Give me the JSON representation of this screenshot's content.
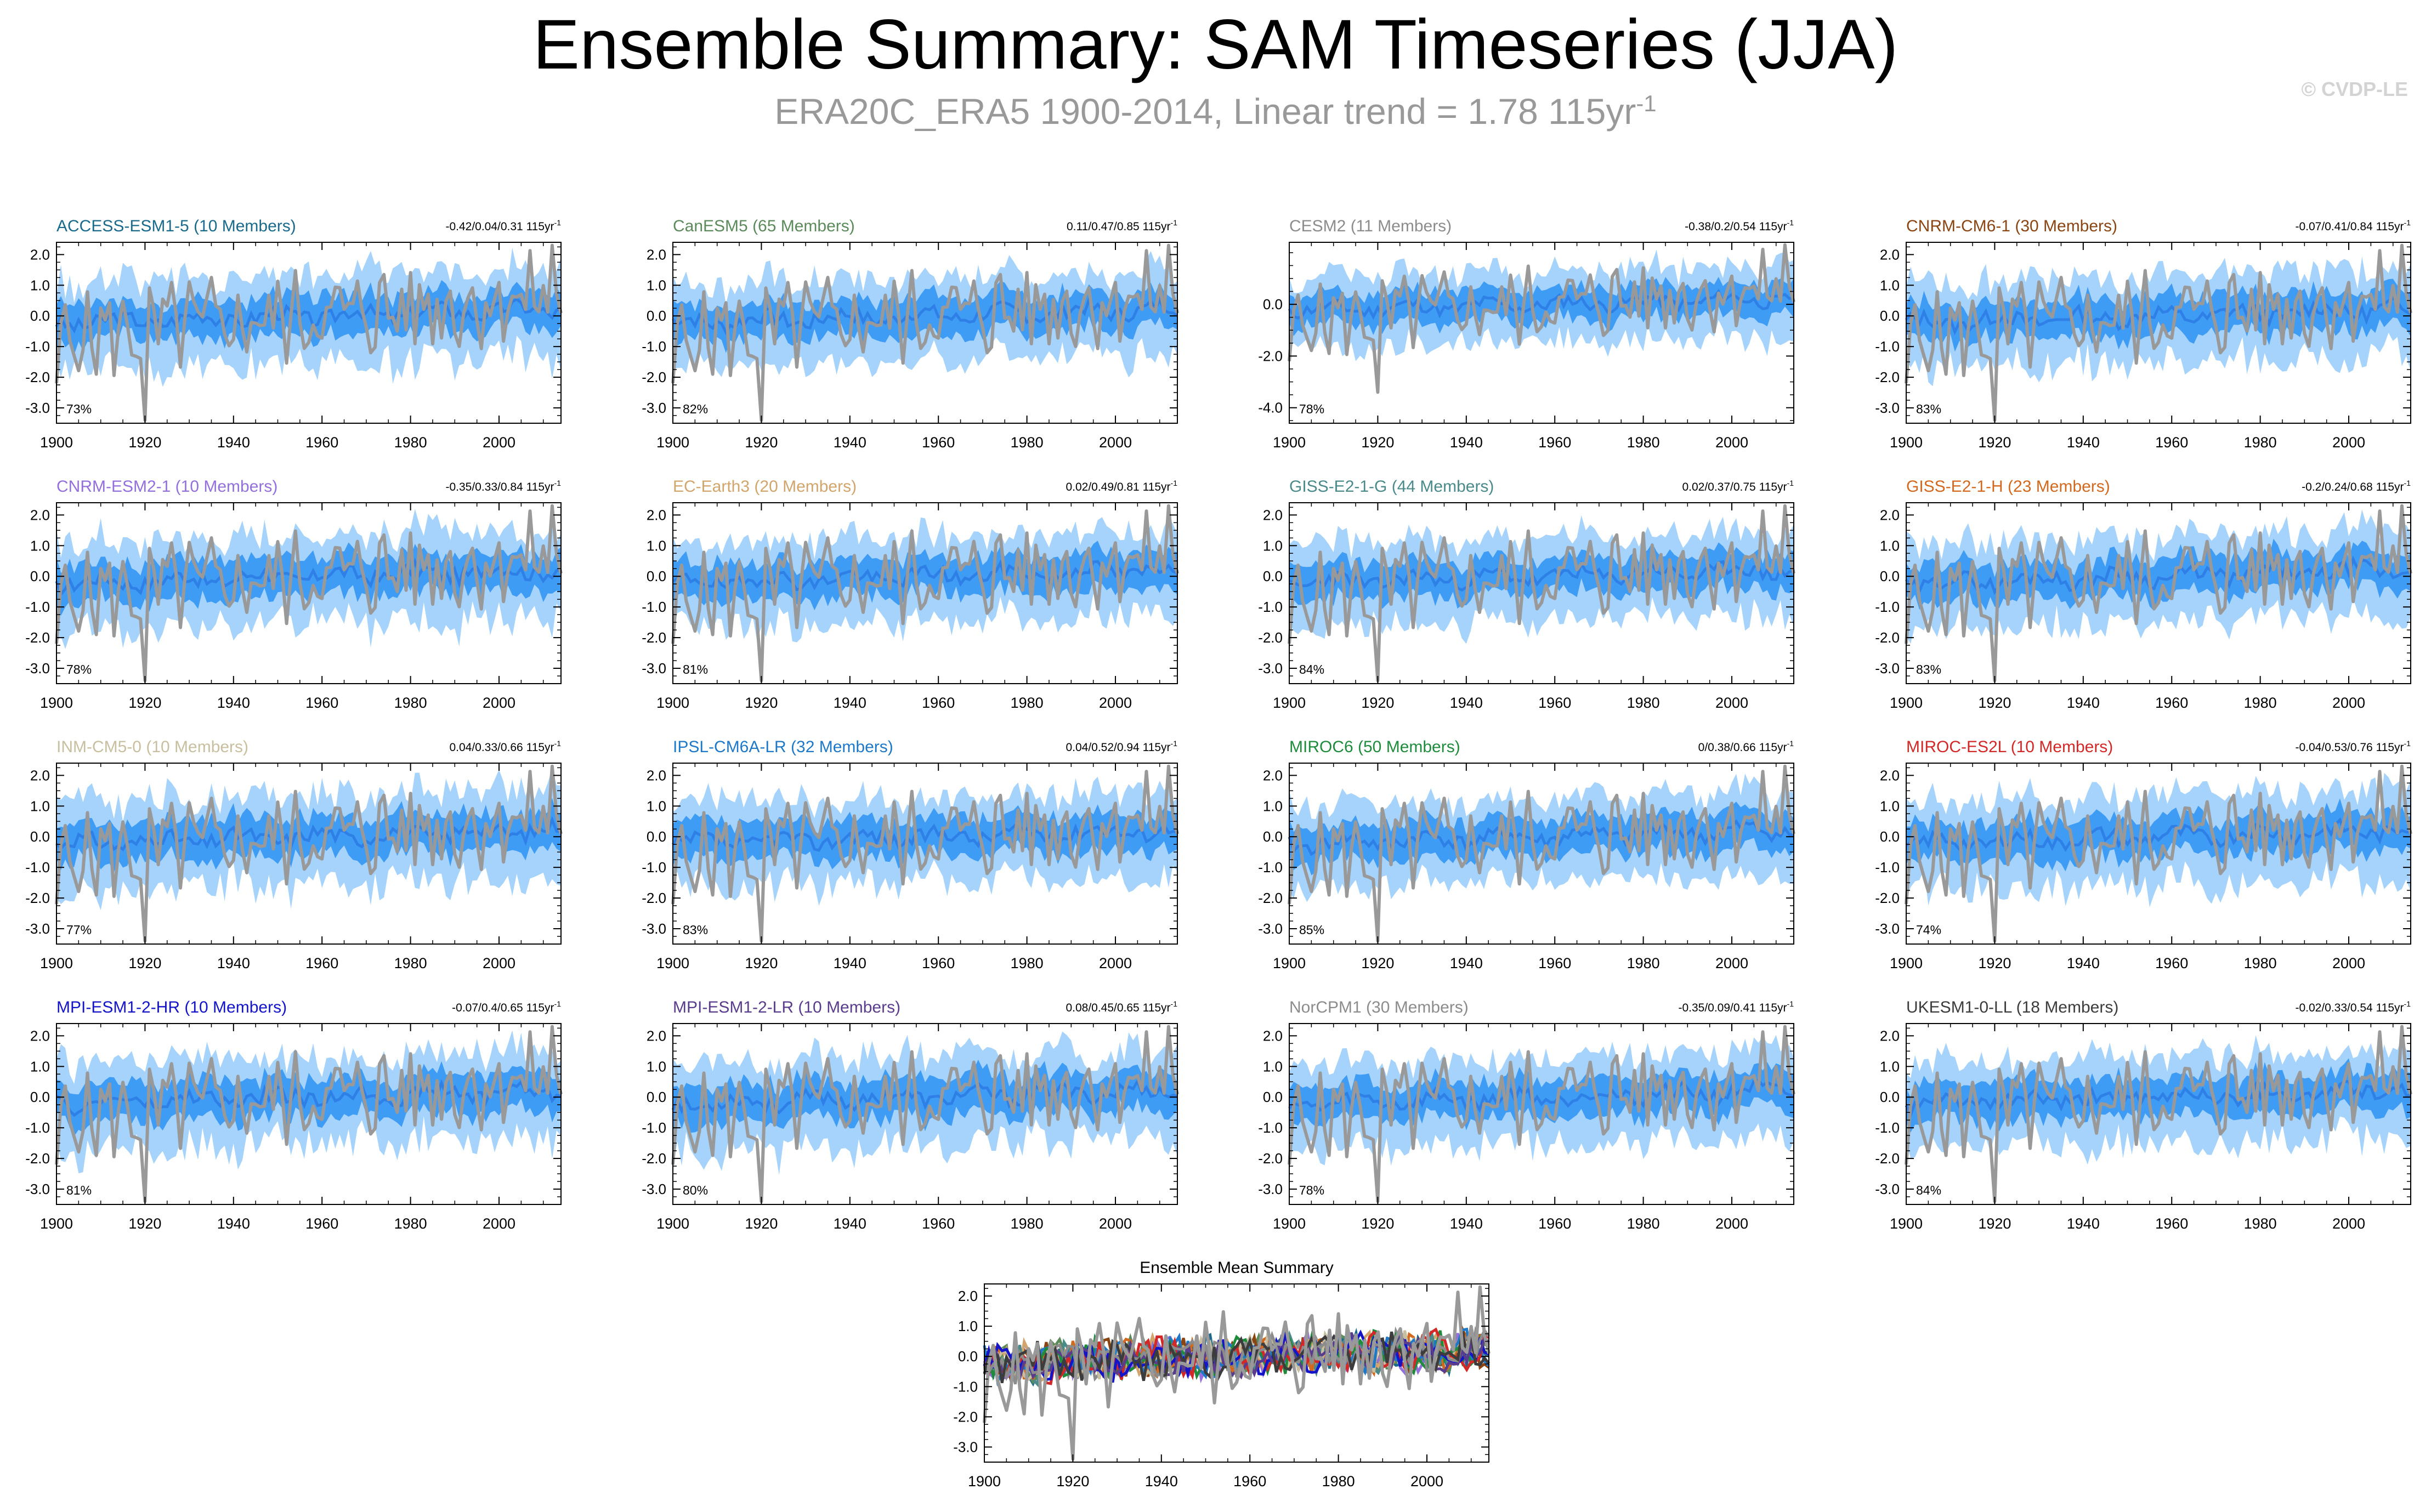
{
  "page": {
    "title": "Ensemble Summary: SAM Timeseries (JJA)",
    "subtitle_main": "ERA20C_ERA5 1900-2014, Linear trend = 1.78 115yr",
    "subtitle_sup": "-1",
    "copyright": "© CVDP-LE"
  },
  "colors": {
    "obs": "#999999",
    "band_outer": "#a6d3fb",
    "band_inner": "#3f9cf5",
    "ens_mean": "#2f80e6",
    "axis": "#000000"
  },
  "chart_data": [
    {
      "type": "area",
      "title": "ACCESS-ESM1-5 (10 Members)",
      "title_color": "#1a6a8c",
      "trend": "-0.42/0.04/0.31 115yr",
      "trend_sup": "-1",
      "pct": "73%",
      "xlim": [
        1900,
        2014
      ],
      "ylim": [
        -3.5,
        2.4
      ],
      "yticks": [
        2,
        1,
        0,
        -1,
        -2,
        -3
      ],
      "ytick_labels": [
        "2.0",
        "1.0",
        "0.0",
        "-1.0",
        "-2.0",
        "-3.0"
      ],
      "xticks": [
        1900,
        1920,
        1940,
        1960,
        1980,
        2000
      ],
      "xtick_labels": [
        "1900",
        "1920",
        "1940",
        "1960",
        "1980",
        "2000"
      ],
      "seed": 3,
      "spread": 1.0
    },
    {
      "type": "area",
      "title": "CanESM5 (65 Members)",
      "title_color": "#5b8a5b",
      "trend": "0.11/0.47/0.85 115yr",
      "trend_sup": "-1",
      "pct": "82%",
      "xlim": [
        1900,
        2014
      ],
      "ylim": [
        -3.5,
        2.4
      ],
      "yticks": [
        2,
        1,
        0,
        -1,
        -2,
        -3
      ],
      "ytick_labels": [
        "2.0",
        "1.0",
        "0.0",
        "-1.0",
        "-2.0",
        "-3.0"
      ],
      "xticks": [
        1900,
        1920,
        1940,
        1960,
        1980,
        2000
      ],
      "xtick_labels": [
        "1900",
        "1920",
        "1940",
        "1960",
        "1980",
        "2000"
      ],
      "seed": 7,
      "spread": 0.8
    },
    {
      "type": "area",
      "title": "CESM2 (11 Members)",
      "title_color": "#8c8c8c",
      "trend": "-0.38/0.2/0.54 115yr",
      "trend_sup": "-1",
      "pct": "78%",
      "xlim": [
        1900,
        2014
      ],
      "ylim": [
        -4.6,
        2.4
      ],
      "yticks": [
        0,
        -2,
        -4
      ],
      "ytick_labels": [
        "0.0",
        "-2.0",
        "-4.0"
      ],
      "xticks": [
        1900,
        1920,
        1940,
        1960,
        1980,
        2000
      ],
      "xtick_labels": [
        "1900",
        "1920",
        "1940",
        "1960",
        "1980",
        "2000"
      ],
      "seed": 11,
      "spread": 0.9
    },
    {
      "type": "area",
      "title": "CNRM-CM6-1 (30 Members)",
      "title_color": "#8b4513",
      "trend": "-0.07/0.41/0.84 115yr",
      "trend_sup": "-1",
      "pct": "83%",
      "xlim": [
        1900,
        2014
      ],
      "ylim": [
        -3.5,
        2.4
      ],
      "yticks": [
        2,
        1,
        0,
        -1,
        -2,
        -3
      ],
      "ytick_labels": [
        "2.0",
        "1.0",
        "0.0",
        "-1.0",
        "-2.0",
        "-3.0"
      ],
      "xticks": [
        1900,
        1920,
        1940,
        1960,
        1980,
        2000
      ],
      "xtick_labels": [
        "1900",
        "1920",
        "1940",
        "1960",
        "1980",
        "2000"
      ],
      "seed": 13,
      "spread": 0.9
    },
    {
      "type": "area",
      "title": "CNRM-ESM2-1 (10 Members)",
      "title_color": "#9370db",
      "trend": "-0.35/0.33/0.84 115yr",
      "trend_sup": "-1",
      "pct": "78%",
      "xlim": [
        1900,
        2014
      ],
      "ylim": [
        -3.5,
        2.4
      ],
      "yticks": [
        2,
        1,
        0,
        -1,
        -2,
        -3
      ],
      "ytick_labels": [
        "2.0",
        "1.0",
        "0.0",
        "-1.0",
        "-2.0",
        "-3.0"
      ],
      "xticks": [
        1900,
        1920,
        1940,
        1960,
        1980,
        2000
      ],
      "xtick_labels": [
        "1900",
        "1920",
        "1940",
        "1960",
        "1980",
        "2000"
      ],
      "seed": 17,
      "spread": 1.0
    },
    {
      "type": "area",
      "title": "EC-Earth3 (20 Members)",
      "title_color": "#d2a56c",
      "trend": "0.02/0.49/0.81 115yr",
      "trend_sup": "-1",
      "pct": "81%",
      "xlim": [
        1900,
        2014
      ],
      "ylim": [
        -3.5,
        2.4
      ],
      "yticks": [
        2,
        1,
        0,
        -1,
        -2,
        -3
      ],
      "ytick_labels": [
        "2.0",
        "1.0",
        "0.0",
        "-1.0",
        "-2.0",
        "-3.0"
      ],
      "xticks": [
        1900,
        1920,
        1940,
        1960,
        1980,
        2000
      ],
      "xtick_labels": [
        "1900",
        "1920",
        "1940",
        "1960",
        "1980",
        "2000"
      ],
      "seed": 19,
      "spread": 0.85
    },
    {
      "type": "area",
      "title": "GISS-E2-1-G (44 Members)",
      "title_color": "#4a8a8a",
      "trend": "0.02/0.37/0.75 115yr",
      "trend_sup": "-1",
      "pct": "84%",
      "xlim": [
        1900,
        2014
      ],
      "ylim": [
        -3.5,
        2.4
      ],
      "yticks": [
        2,
        1,
        0,
        -1,
        -2,
        -3
      ],
      "ytick_labels": [
        "2.0",
        "1.0",
        "0.0",
        "-1.0",
        "-2.0",
        "-3.0"
      ],
      "xticks": [
        1900,
        1920,
        1940,
        1960,
        1980,
        2000
      ],
      "xtick_labels": [
        "1900",
        "1920",
        "1940",
        "1960",
        "1980",
        "2000"
      ],
      "seed": 23,
      "spread": 0.8
    },
    {
      "type": "area",
      "title": "GISS-E2-1-H (23 Members)",
      "title_color": "#d2691e",
      "trend": "-0.2/0.24/0.68 115yr",
      "trend_sup": "-1",
      "pct": "83%",
      "xlim": [
        1900,
        2014
      ],
      "ylim": [
        -3.5,
        2.4
      ],
      "yticks": [
        2,
        1,
        0,
        -1,
        -2,
        -3
      ],
      "ytick_labels": [
        "2.0",
        "1.0",
        "0.0",
        "-1.0",
        "-2.0",
        "-3.0"
      ],
      "xticks": [
        1900,
        1920,
        1940,
        1960,
        1980,
        2000
      ],
      "xtick_labels": [
        "1900",
        "1920",
        "1940",
        "1960",
        "1980",
        "2000"
      ],
      "seed": 29,
      "spread": 0.85
    },
    {
      "type": "area",
      "title": "INM-CM5-0 (10 Members)",
      "title_color": "#c8bfa0",
      "trend": "0.04/0.33/0.66 115yr",
      "trend_sup": "-1",
      "pct": "77%",
      "xlim": [
        1900,
        2014
      ],
      "ylim": [
        -3.5,
        2.4
      ],
      "yticks": [
        2,
        1,
        0,
        -1,
        -2,
        -3
      ],
      "ytick_labels": [
        "2.0",
        "1.0",
        "0.0",
        "-1.0",
        "-2.0",
        "-3.0"
      ],
      "xticks": [
        1900,
        1920,
        1940,
        1960,
        1980,
        2000
      ],
      "xtick_labels": [
        "1900",
        "1920",
        "1940",
        "1960",
        "1980",
        "2000"
      ],
      "seed": 31,
      "spread": 1.0
    },
    {
      "type": "area",
      "title": "IPSL-CM6A-LR (32 Members)",
      "title_color": "#1e78c8",
      "trend": "0.04/0.52/0.94 115yr",
      "trend_sup": "-1",
      "pct": "83%",
      "xlim": [
        1900,
        2014
      ],
      "ylim": [
        -3.5,
        2.4
      ],
      "yticks": [
        2,
        1,
        0,
        -1,
        -2,
        -3
      ],
      "ytick_labels": [
        "2.0",
        "1.0",
        "0.0",
        "-1.0",
        "-2.0",
        "-3.0"
      ],
      "xticks": [
        1900,
        1920,
        1940,
        1960,
        1980,
        2000
      ],
      "xtick_labels": [
        "1900",
        "1920",
        "1940",
        "1960",
        "1980",
        "2000"
      ],
      "seed": 37,
      "spread": 0.85
    },
    {
      "type": "area",
      "title": "MIROC6 (50 Members)",
      "title_color": "#1e8c3c",
      "trend": "0/0.38/0.66 115yr",
      "trend_sup": "-1",
      "pct": "85%",
      "xlim": [
        1900,
        2014
      ],
      "ylim": [
        -3.5,
        2.4
      ],
      "yticks": [
        2,
        1,
        0,
        -1,
        -2,
        -3
      ],
      "ytick_labels": [
        "2.0",
        "1.0",
        "0.0",
        "-1.0",
        "-2.0",
        "-3.0"
      ],
      "xticks": [
        1900,
        1920,
        1940,
        1960,
        1980,
        2000
      ],
      "xtick_labels": [
        "1900",
        "1920",
        "1940",
        "1960",
        "1980",
        "2000"
      ],
      "seed": 41,
      "spread": 0.8
    },
    {
      "type": "area",
      "title": "MIROC-ES2L (10 Members)",
      "title_color": "#d22828",
      "trend": "-0.04/0.53/0.76 115yr",
      "trend_sup": "-1",
      "pct": "74%",
      "xlim": [
        1900,
        2014
      ],
      "ylim": [
        -3.5,
        2.4
      ],
      "yticks": [
        2,
        1,
        0,
        -1,
        -2,
        -3
      ],
      "ytick_labels": [
        "2.0",
        "1.0",
        "0.0",
        "-1.0",
        "-2.0",
        "-3.0"
      ],
      "xticks": [
        1900,
        1920,
        1940,
        1960,
        1980,
        2000
      ],
      "xtick_labels": [
        "1900",
        "1920",
        "1940",
        "1960",
        "1980",
        "2000"
      ],
      "seed": 43,
      "spread": 1.0
    },
    {
      "type": "area",
      "title": "MPI-ESM1-2-HR (10 Members)",
      "title_color": "#1414c8",
      "trend": "-0.07/0.4/0.65 115yr",
      "trend_sup": "-1",
      "pct": "81%",
      "xlim": [
        1900,
        2014
      ],
      "ylim": [
        -3.5,
        2.4
      ],
      "yticks": [
        2,
        1,
        0,
        -1,
        -2,
        -3
      ],
      "ytick_labels": [
        "2.0",
        "1.0",
        "0.0",
        "-1.0",
        "-2.0",
        "-3.0"
      ],
      "xticks": [
        1900,
        1920,
        1940,
        1960,
        1980,
        2000
      ],
      "xtick_labels": [
        "1900",
        "1920",
        "1940",
        "1960",
        "1980",
        "2000"
      ],
      "seed": 47,
      "spread": 1.0
    },
    {
      "type": "area",
      "title": "MPI-ESM1-2-LR (10 Members)",
      "title_color": "#5a3c8c",
      "trend": "0.08/0.45/0.65 115yr",
      "trend_sup": "-1",
      "pct": "80%",
      "xlim": [
        1900,
        2014
      ],
      "ylim": [
        -3.5,
        2.4
      ],
      "yticks": [
        2,
        1,
        0,
        -1,
        -2,
        -3
      ],
      "ytick_labels": [
        "2.0",
        "1.0",
        "0.0",
        "-1.0",
        "-2.0",
        "-3.0"
      ],
      "xticks": [
        1900,
        1920,
        1940,
        1960,
        1980,
        2000
      ],
      "xtick_labels": [
        "1900",
        "1920",
        "1940",
        "1960",
        "1980",
        "2000"
      ],
      "seed": 53,
      "spread": 1.0
    },
    {
      "type": "area",
      "title": "NorCPM1 (30 Members)",
      "title_color": "#8c8c8c",
      "trend": "-0.35/0.09/0.41 115yr",
      "trend_sup": "-1",
      "pct": "78%",
      "xlim": [
        1900,
        2014
      ],
      "ylim": [
        -3.5,
        2.4
      ],
      "yticks": [
        2,
        1,
        0,
        -1,
        -2,
        -3
      ],
      "ytick_labels": [
        "2.0",
        "1.0",
        "0.0",
        "-1.0",
        "-2.0",
        "-3.0"
      ],
      "xticks": [
        1900,
        1920,
        1940,
        1960,
        1980,
        2000
      ],
      "xtick_labels": [
        "1900",
        "1920",
        "1940",
        "1960",
        "1980",
        "2000"
      ],
      "seed": 59,
      "spread": 0.85
    },
    {
      "type": "area",
      "title": "UKESM1-0-LL (18 Members)",
      "title_color": "#3c3c3c",
      "trend": "-0.02/0.33/0.54 115yr",
      "trend_sup": "-1",
      "pct": "84%",
      "xlim": [
        1900,
        2014
      ],
      "ylim": [
        -3.5,
        2.4
      ],
      "yticks": [
        2,
        1,
        0,
        -1,
        -2,
        -3
      ],
      "ytick_labels": [
        "2.0",
        "1.0",
        "0.0",
        "-1.0",
        "-2.0",
        "-3.0"
      ],
      "xticks": [
        1900,
        1920,
        1940,
        1960,
        1980,
        2000
      ],
      "xtick_labels": [
        "1900",
        "1920",
        "1940",
        "1960",
        "1980",
        "2000"
      ],
      "seed": 61,
      "spread": 0.9
    },
    {
      "type": "line",
      "title": "Ensemble Mean Summary",
      "title_color": "#000000",
      "xlim": [
        1900,
        2014
      ],
      "ylim": [
        -3.5,
        2.4
      ],
      "yticks": [
        2,
        1,
        0,
        -1,
        -2,
        -3
      ],
      "ytick_labels": [
        "2.0",
        "1.0",
        "0.0",
        "-1.0",
        "-2.0",
        "-3.0"
      ],
      "xticks": [
        1900,
        1920,
        1940,
        1960,
        1980,
        2000
      ],
      "xtick_labels": [
        "1900",
        "1920",
        "1940",
        "1960",
        "1980",
        "2000"
      ],
      "series_colors": [
        "#1a6a8c",
        "#5b8a5b",
        "#8c8c8c",
        "#8b4513",
        "#9370db",
        "#d2a56c",
        "#4a8a8a",
        "#d2691e",
        "#c8bfa0",
        "#1e78c8",
        "#1e8c3c",
        "#d22828",
        "#1414c8",
        "#5a3c8c",
        "#8c8c8c",
        "#3c3c3c"
      ]
    }
  ]
}
